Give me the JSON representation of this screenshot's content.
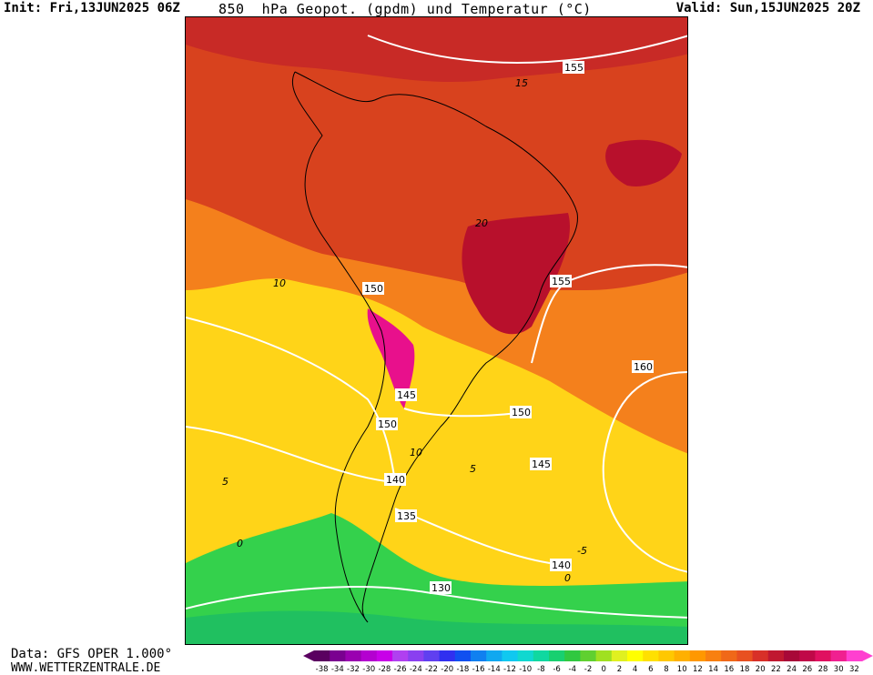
{
  "header": {
    "init": "Init: Fri,13JUN2025 06Z",
    "title": "850  hPa Geopot. (gpdm) und Temperatur (°C)",
    "valid": "Valid: Sun,15JUN2025 20Z"
  },
  "map": {
    "contour_labels_geopotential": [
      "155",
      "155",
      "150",
      "145",
      "150",
      "150",
      "160",
      "145",
      "140",
      "135",
      "140",
      "130"
    ],
    "contour_labels_temperature": [
      "15",
      "20",
      "10",
      "5",
      "10",
      "5",
      "0",
      "-5",
      "0"
    ]
  },
  "footer": {
    "data_source": "Data: GFS OPER 1.000°",
    "website": "WWW.WETTERZENTRALE.DE"
  },
  "legend": {
    "ticks": [
      "-38",
      "-34",
      "-32",
      "-30",
      "-28",
      "-26",
      "-24",
      "-22",
      "-20",
      "-18",
      "-16",
      "-14",
      "-12",
      "-10",
      "-8",
      "-6",
      "-4",
      "-2",
      "0",
      "2",
      "4",
      "6",
      "8",
      "10",
      "12",
      "14",
      "16",
      "18",
      "20",
      "22",
      "24",
      "26",
      "28",
      "30",
      "32"
    ],
    "colors": [
      "#5a0060",
      "#7a0090",
      "#9a00b0",
      "#b400d0",
      "#c800e8",
      "#b040f0",
      "#8a40f0",
      "#6040f0",
      "#3030f0",
      "#1050f0",
      "#1080f0",
      "#10a8f0",
      "#10c8f0",
      "#10d8d0",
      "#10d8a0",
      "#18d070",
      "#30c840",
      "#60d030",
      "#a0e020",
      "#e0f020",
      "#ffff00",
      "#ffe000",
      "#ffc800",
      "#ffb000",
      "#ff9800",
      "#f88010",
      "#f06818",
      "#e85020",
      "#d83028",
      "#c01830",
      "#a80838",
      "#c00848",
      "#e01060",
      "#f02090",
      "#ff40d0"
    ]
  },
  "colors": {
    "hot": "#b8102c",
    "warm": "#d8421e",
    "orange": "#f4801c",
    "yellow": "#ffd418",
    "green": "#34d14c",
    "magenta": "#e8108c"
  }
}
